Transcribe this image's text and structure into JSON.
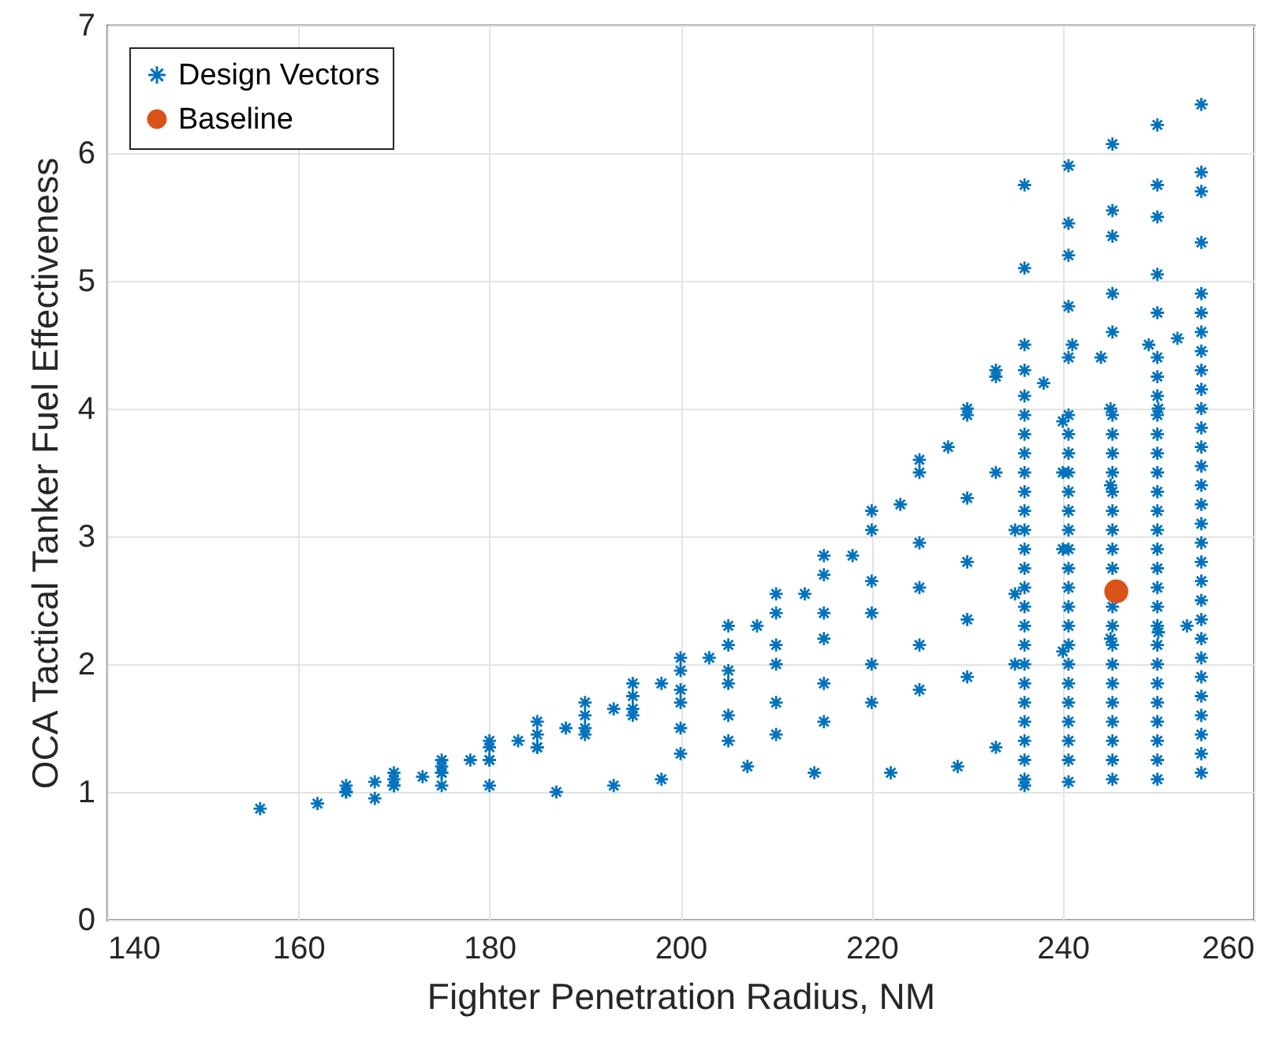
{
  "chart_data": {
    "type": "scatter",
    "xlabel": "Fighter Penetration Radius, NM",
    "ylabel": "OCA Tactical Tanker Fuel Effectiveness",
    "xlim": [
      140,
      260
    ],
    "ylim": [
      0,
      7
    ],
    "xticks": [
      140,
      160,
      180,
      200,
      220,
      240,
      260
    ],
    "yticks": [
      0,
      1,
      2,
      3,
      4,
      5,
      6,
      7
    ],
    "grid": true,
    "legend": "top left",
    "series": [
      {
        "name": "Design Vectors",
        "color": "#0072bd",
        "marker": "cross",
        "x": [
          156,
          162,
          165,
          168,
          170,
          173,
          175,
          178,
          180,
          183,
          185,
          188,
          190,
          193,
          195,
          198,
          200,
          203,
          205,
          208,
          210,
          213,
          215,
          218,
          220,
          223,
          225,
          228,
          230,
          233,
          165,
          170,
          175,
          180,
          185,
          190,
          195,
          200,
          205,
          210,
          215,
          220,
          225,
          230,
          233,
          238,
          241,
          165,
          170,
          175,
          180,
          185,
          190,
          195,
          200,
          205,
          210,
          215,
          220,
          225,
          230,
          233,
          240,
          244,
          170,
          175,
          180,
          185,
          190,
          195,
          200,
          205,
          210,
          215,
          220,
          225,
          230,
          235,
          240,
          245,
          249,
          200,
          205,
          210,
          215,
          220,
          225,
          230,
          235,
          240,
          245,
          250,
          252,
          200,
          205,
          210,
          215,
          220,
          225,
          230,
          235,
          240,
          245,
          250,
          253,
          168,
          175,
          180,
          187,
          193,
          198,
          207,
          214,
          222,
          229,
          233,
          236,
          236,
          236,
          236,
          236,
          236,
          236,
          236,
          236,
          236,
          236,
          236,
          236,
          236,
          236,
          236,
          236,
          236,
          236,
          236,
          236,
          236,
          236,
          236,
          236,
          236,
          240.6,
          240.6,
          240.6,
          240.6,
          240.6,
          240.6,
          240.6,
          240.6,
          240.6,
          240.6,
          240.6,
          240.6,
          240.6,
          240.6,
          240.6,
          240.6,
          240.6,
          240.6,
          240.6,
          240.6,
          240.6,
          240.6,
          240.6,
          240.6,
          240.6,
          245.2,
          245.2,
          245.2,
          245.2,
          245.2,
          245.2,
          245.2,
          245.2,
          245.2,
          245.2,
          245.2,
          245.2,
          245.2,
          245.2,
          245.2,
          245.2,
          245.2,
          245.2,
          245.2,
          245.2,
          245.2,
          245.2,
          245.2,
          245.2,
          249.9,
          249.9,
          249.9,
          249.9,
          249.9,
          249.9,
          249.9,
          249.9,
          249.9,
          249.9,
          249.9,
          249.9,
          249.9,
          249.9,
          249.9,
          249.9,
          249.9,
          249.9,
          249.9,
          249.9,
          249.9,
          249.9,
          249.9,
          249.9,
          249.9,
          249.9,
          249.9,
          249.9,
          254.5,
          254.5,
          254.5,
          254.5,
          254.5,
          254.5,
          254.5,
          254.5,
          254.5,
          254.5,
          254.5,
          254.5,
          254.5,
          254.5,
          254.5,
          254.5,
          254.5,
          254.5,
          254.5,
          254.5,
          254.5,
          254.5,
          254.5,
          254.5,
          254.5,
          254.5,
          254.5,
          254.5,
          254.5,
          254.5
        ],
        "values": [
          0.87,
          0.91,
          1.0,
          1.08,
          1.1,
          1.12,
          1.2,
          1.25,
          1.35,
          1.4,
          1.45,
          1.5,
          1.6,
          1.65,
          1.75,
          1.85,
          1.95,
          2.05,
          2.15,
          2.3,
          2.4,
          2.55,
          2.7,
          2.85,
          3.05,
          3.25,
          3.5,
          3.7,
          3.95,
          4.25,
          1.05,
          1.15,
          1.25,
          1.4,
          1.55,
          1.7,
          1.85,
          2.05,
          2.3,
          2.55,
          2.85,
          3.2,
          3.6,
          4.0,
          4.3,
          4.2,
          4.5,
          1.0,
          1.05,
          1.15,
          1.25,
          1.35,
          1.5,
          1.65,
          1.8,
          1.95,
          2.15,
          2.4,
          2.65,
          2.95,
          3.3,
          3.5,
          3.9,
          4.4,
          1.05,
          1.15,
          1.25,
          1.35,
          1.45,
          1.6,
          1.7,
          1.85,
          2.0,
          2.2,
          2.4,
          2.6,
          2.8,
          3.05,
          3.5,
          4.0,
          4.5,
          1.5,
          1.6,
          1.7,
          1.85,
          2.0,
          2.15,
          2.35,
          2.55,
          2.9,
          3.4,
          4.0,
          4.55,
          1.3,
          1.4,
          1.45,
          1.55,
          1.7,
          1.8,
          1.9,
          2.0,
          2.1,
          2.2,
          2.25,
          2.3,
          0.95,
          1.05,
          1.05,
          1.0,
          1.05,
          1.1,
          1.2,
          1.15,
          1.15,
          1.2,
          1.35,
          1.05,
          1.1,
          1.25,
          1.4,
          1.55,
          1.7,
          1.85,
          2.0,
          2.15,
          2.3,
          2.45,
          2.6,
          2.75,
          2.9,
          3.05,
          3.2,
          3.35,
          3.5,
          3.65,
          3.8,
          3.95,
          4.1,
          4.3,
          4.5,
          5.1,
          5.75,
          1.08,
          1.25,
          1.4,
          1.55,
          1.7,
          1.85,
          2.0,
          2.15,
          2.3,
          2.45,
          2.6,
          2.75,
          2.9,
          3.05,
          3.2,
          3.35,
          3.5,
          3.65,
          3.8,
          3.95,
          4.4,
          4.8,
          5.2,
          5.45,
          5.9,
          1.1,
          1.25,
          1.4,
          1.55,
          1.7,
          1.85,
          2.0,
          2.15,
          2.3,
          2.45,
          2.75,
          2.9,
          3.05,
          3.2,
          3.35,
          3.5,
          3.65,
          3.8,
          3.95,
          4.6,
          4.9,
          5.35,
          5.55,
          6.07,
          1.1,
          1.25,
          1.4,
          1.55,
          1.7,
          1.85,
          2.0,
          2.15,
          2.3,
          2.45,
          2.6,
          2.75,
          2.9,
          3.05,
          3.2,
          3.35,
          3.5,
          3.65,
          3.8,
          3.95,
          4.1,
          4.25,
          4.4,
          4.75,
          5.05,
          5.5,
          5.75,
          6.22,
          1.15,
          1.3,
          1.45,
          1.6,
          1.75,
          1.9,
          2.05,
          2.2,
          2.35,
          2.5,
          2.65,
          2.8,
          2.95,
          3.1,
          3.25,
          3.4,
          3.55,
          3.7,
          3.85,
          4.0,
          4.15,
          4.3,
          4.45,
          4.6,
          4.75,
          4.9,
          5.3,
          5.7,
          5.85,
          6.38
        ]
      },
      {
        "name": "Baseline",
        "color": "#d95319",
        "marker": "circle",
        "x": [
          245.6
        ],
        "values": [
          2.57
        ]
      }
    ]
  }
}
